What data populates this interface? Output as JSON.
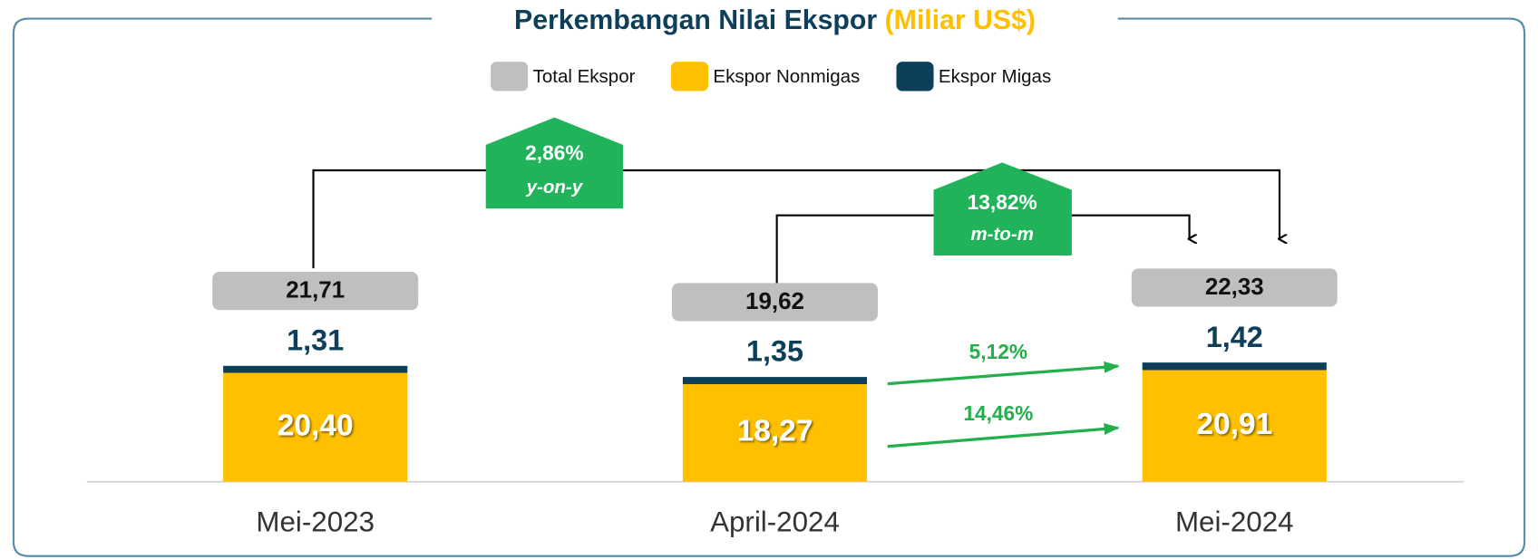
{
  "chart_data": {
    "type": "bar",
    "title": "Perkembangan Nilai Ekspor",
    "unit": "(Miliar US$)",
    "categories": [
      "Mei-2023",
      "April-2024",
      "Mei-2024"
    ],
    "series": [
      {
        "name": "Total Ekspor",
        "color": "#bfbfbf",
        "values": [
          21.71,
          19.62,
          22.33
        ],
        "value_labels": [
          "21,71",
          "19,62",
          "22,33"
        ]
      },
      {
        "name": "Ekspor Nonmigas",
        "color": "#ffc000",
        "values": [
          20.4,
          18.27,
          20.91
        ],
        "value_labels": [
          "20,40",
          "18,27",
          "20,91"
        ]
      },
      {
        "name": "Ekspor Migas",
        "color": "#0e3f5a",
        "values": [
          1.31,
          1.35,
          1.42
        ],
        "value_labels": [
          "1,31",
          "1,35",
          "1,42"
        ]
      }
    ],
    "ylim": [
      0,
      40
    ],
    "annotations": [
      "2,86%",
      "y-on-y",
      "13,82%",
      "m-to-m",
      "5,12%",
      "14,46%"
    ]
  }
}
